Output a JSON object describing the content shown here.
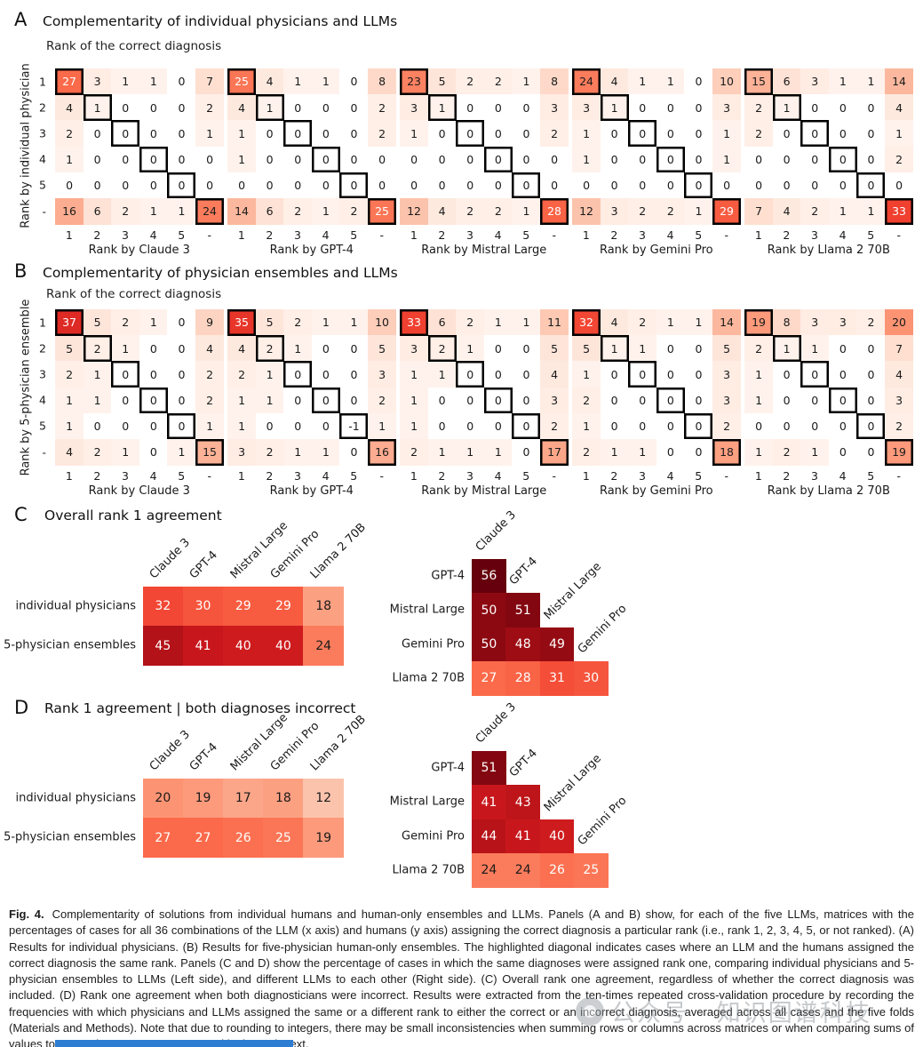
{
  "chart_data": {
    "type": "heatmap",
    "panel_a": {
      "label": "A",
      "title": "Complementarity of individual physicians and LLMs",
      "subtitle": "Rank of the correct diagnosis",
      "ylabel": "Rank by individual physician",
      "row_ticks": [
        "1",
        "2",
        "3",
        "4",
        "5",
        "-"
      ],
      "col_ticks": [
        "1",
        "2",
        "3",
        "4",
        "5",
        "-"
      ],
      "matrices": [
        {
          "xlabel": "Rank by Claude 3",
          "values": [
            [
              27,
              3,
              1,
              1,
              0,
              7
            ],
            [
              4,
              1,
              0,
              0,
              0,
              2
            ],
            [
              2,
              0,
              0,
              0,
              0,
              1
            ],
            [
              1,
              0,
              0,
              0,
              0,
              0
            ],
            [
              0,
              0,
              0,
              0,
              0,
              0
            ],
            [
              16,
              6,
              2,
              1,
              1,
              24
            ]
          ]
        },
        {
          "xlabel": "Rank by GPT-4",
          "values": [
            [
              25,
              4,
              1,
              1,
              0,
              8
            ],
            [
              4,
              1,
              0,
              0,
              0,
              2
            ],
            [
              1,
              0,
              0,
              0,
              0,
              2
            ],
            [
              1,
              0,
              0,
              0,
              0,
              0
            ],
            [
              0,
              0,
              0,
              0,
              0,
              0
            ],
            [
              14,
              6,
              2,
              1,
              2,
              25
            ]
          ]
        },
        {
          "xlabel": "Rank by Mistral Large",
          "values": [
            [
              23,
              5,
              2,
              2,
              1,
              8
            ],
            [
              3,
              1,
              0,
              0,
              0,
              3
            ],
            [
              1,
              0,
              0,
              0,
              0,
              2
            ],
            [
              0,
              0,
              0,
              0,
              0,
              0
            ],
            [
              0,
              0,
              0,
              0,
              0,
              0
            ],
            [
              12,
              4,
              2,
              2,
              1,
              28
            ]
          ]
        },
        {
          "xlabel": "Rank by Gemini Pro",
          "values": [
            [
              24,
              4,
              1,
              1,
              0,
              10
            ],
            [
              3,
              1,
              0,
              0,
              0,
              3
            ],
            [
              1,
              0,
              0,
              0,
              0,
              1
            ],
            [
              1,
              0,
              0,
              0,
              0,
              1
            ],
            [
              0,
              0,
              0,
              0,
              0,
              0
            ],
            [
              12,
              3,
              2,
              2,
              1,
              29
            ]
          ]
        },
        {
          "xlabel": "Rank by Llama 2 70B",
          "values": [
            [
              15,
              6,
              3,
              1,
              1,
              14
            ],
            [
              2,
              1,
              0,
              0,
              0,
              4
            ],
            [
              2,
              0,
              0,
              0,
              0,
              1
            ],
            [
              0,
              0,
              0,
              0,
              0,
              2
            ],
            [
              0,
              0,
              0,
              0,
              0,
              0
            ],
            [
              7,
              4,
              2,
              1,
              1,
              33
            ]
          ]
        }
      ]
    },
    "panel_b": {
      "label": "B",
      "title": "Complementarity of physician ensembles and LLMs",
      "subtitle": "Rank of the correct diagnosis",
      "ylabel": "Rank by 5-physician ensemble",
      "row_ticks": [
        "1",
        "2",
        "3",
        "4",
        "5",
        "-"
      ],
      "col_ticks": [
        "1",
        "2",
        "3",
        "4",
        "5",
        "-"
      ],
      "matrices": [
        {
          "xlabel": "Rank by Claude 3",
          "values": [
            [
              37,
              5,
              2,
              1,
              0,
              9
            ],
            [
              5,
              2,
              1,
              0,
              0,
              4
            ],
            [
              2,
              1,
              0,
              0,
              0,
              2
            ],
            [
              1,
              1,
              0,
              0,
              0,
              2
            ],
            [
              1,
              0,
              0,
              0,
              0,
              1
            ],
            [
              4,
              2,
              1,
              0,
              1,
              15
            ]
          ]
        },
        {
          "xlabel": "Rank by GPT-4",
          "values": [
            [
              35,
              5,
              2,
              1,
              1,
              10
            ],
            [
              4,
              2,
              1,
              0,
              0,
              5
            ],
            [
              2,
              1,
              0,
              0,
              0,
              3
            ],
            [
              1,
              1,
              0,
              0,
              0,
              2
            ],
            [
              1,
              0,
              0,
              0,
              -1,
              1
            ],
            [
              3,
              2,
              1,
              1,
              0,
              16
            ]
          ]
        },
        {
          "xlabel": "Rank by Mistral Large",
          "values": [
            [
              33,
              6,
              2,
              1,
              1,
              11
            ],
            [
              3,
              2,
              1,
              0,
              0,
              5
            ],
            [
              1,
              1,
              0,
              0,
              0,
              4
            ],
            [
              1,
              0,
              0,
              0,
              0,
              3
            ],
            [
              1,
              0,
              0,
              0,
              0,
              2
            ],
            [
              2,
              1,
              1,
              1,
              0,
              17
            ]
          ]
        },
        {
          "xlabel": "Rank by Gemini Pro",
          "values": [
            [
              32,
              4,
              2,
              1,
              1,
              14
            ],
            [
              5,
              1,
              1,
              0,
              0,
              5
            ],
            [
              1,
              0,
              0,
              0,
              0,
              3
            ],
            [
              2,
              0,
              0,
              0,
              0,
              3
            ],
            [
              1,
              0,
              0,
              0,
              0,
              2
            ],
            [
              2,
              1,
              1,
              0,
              0,
              18
            ]
          ]
        },
        {
          "xlabel": "Rank by Llama 2 70B",
          "values": [
            [
              19,
              8,
              3,
              3,
              2,
              20
            ],
            [
              2,
              1,
              1,
              0,
              0,
              7
            ],
            [
              1,
              0,
              0,
              0,
              0,
              4
            ],
            [
              1,
              0,
              0,
              0,
              0,
              3
            ],
            [
              0,
              0,
              0,
              0,
              0,
              2
            ],
            [
              1,
              2,
              1,
              0,
              0,
              19
            ]
          ]
        }
      ]
    },
    "panel_c": {
      "label": "C",
      "title": "Overall rank 1 agreement",
      "left": {
        "row_labels": [
          "individual physicians",
          "5-physician ensembles"
        ],
        "col_labels": [
          "Claude 3",
          "GPT-4",
          "Mistral Large",
          "Gemini Pro",
          "Llama 2 70B"
        ],
        "values": [
          [
            32,
            30,
            29,
            29,
            18
          ],
          [
            45,
            41,
            40,
            40,
            24
          ]
        ]
      },
      "right": {
        "row_labels": [
          "GPT-4",
          "Mistral Large",
          "Gemini Pro",
          "Llama 2 70B"
        ],
        "col_labels": [
          "Claude 3",
          "GPT-4",
          "Mistral Large",
          "Gemini Pro"
        ],
        "values": [
          [
            56
          ],
          [
            50,
            51
          ],
          [
            50,
            48,
            49
          ],
          [
            27,
            28,
            31,
            30
          ]
        ]
      }
    },
    "panel_d": {
      "label": "D",
      "title": "Rank 1 agreement | both diagnoses incorrect",
      "left": {
        "row_labels": [
          "individual physicians",
          "5-physician ensembles"
        ],
        "col_labels": [
          "Claude 3",
          "GPT-4",
          "Mistral Large",
          "Gemini Pro",
          "Llama 2 70B"
        ],
        "values": [
          [
            20,
            19,
            17,
            18,
            12
          ],
          [
            27,
            27,
            26,
            25,
            19
          ]
        ]
      },
      "right": {
        "row_labels": [
          "GPT-4",
          "Mistral Large",
          "Gemini Pro",
          "Llama 2 70B"
        ],
        "col_labels": [
          "Claude 3",
          "GPT-4",
          "Mistral Large",
          "Gemini Pro"
        ],
        "values": [
          [
            51
          ],
          [
            41,
            43
          ],
          [
            44,
            41,
            40
          ],
          [
            24,
            24,
            26,
            25
          ]
        ]
      }
    }
  },
  "caption": {
    "tag": "Fig. 4.",
    "text": "Complementarity of solutions from individual humans and human-only ensembles and LLMs. Panels (A and B) show, for each of the five LLMs, matrices with the percentages of cases for all 36 combinations of the LLM (x axis) and humans (y axis) assigning the correct diagnosis a particular rank (i.e., rank 1, 2, 3, 4, 5, or not ranked). (A) Results for individual physicians. (B) Results for five-physician human-only ensembles. The highlighted diagonal indicates cases where an LLM and the humans assigned the correct diagnosis the same rank. Panels (C and D) show the percentage of cases in which the same diagnoses were assigned rank one, comparing individual physicians and 5-physician ensembles to LLMs (Left side), and different LLMs to each other (Right side). (C) Overall rank one agreement, regardless of whether the correct diagnosis was included. (D) Rank one agreement when both diagnosticians were incorrect. Results were extracted from the ten-times repeated cross-validation procedure by recording the frequencies with which physicians and LLMs assigned the same or a different rank to either the correct or an incorrect diagnosis, averaged across all cases and the five folds (Materials and Methods). Note that due to rounding to integers, there may be small inconsistencies when summing rows or columns across matrices or when comparing sums of values to respective percentages reported in the main text."
  },
  "watermark": {
    "text": "公众号 · 知识图谱科技"
  },
  "colors": {
    "heatmap_scale": [
      "#fff5f0",
      "#fee0d2",
      "#fcbba1",
      "#fc9272",
      "#fb6a4a",
      "#ef3b2c",
      "#cb181d",
      "#a50f15",
      "#67000d"
    ],
    "vmax": 54,
    "white_text_threshold": 25,
    "diagonal_highlight": "#000000",
    "bottom_bar": "#2d7dd2"
  }
}
